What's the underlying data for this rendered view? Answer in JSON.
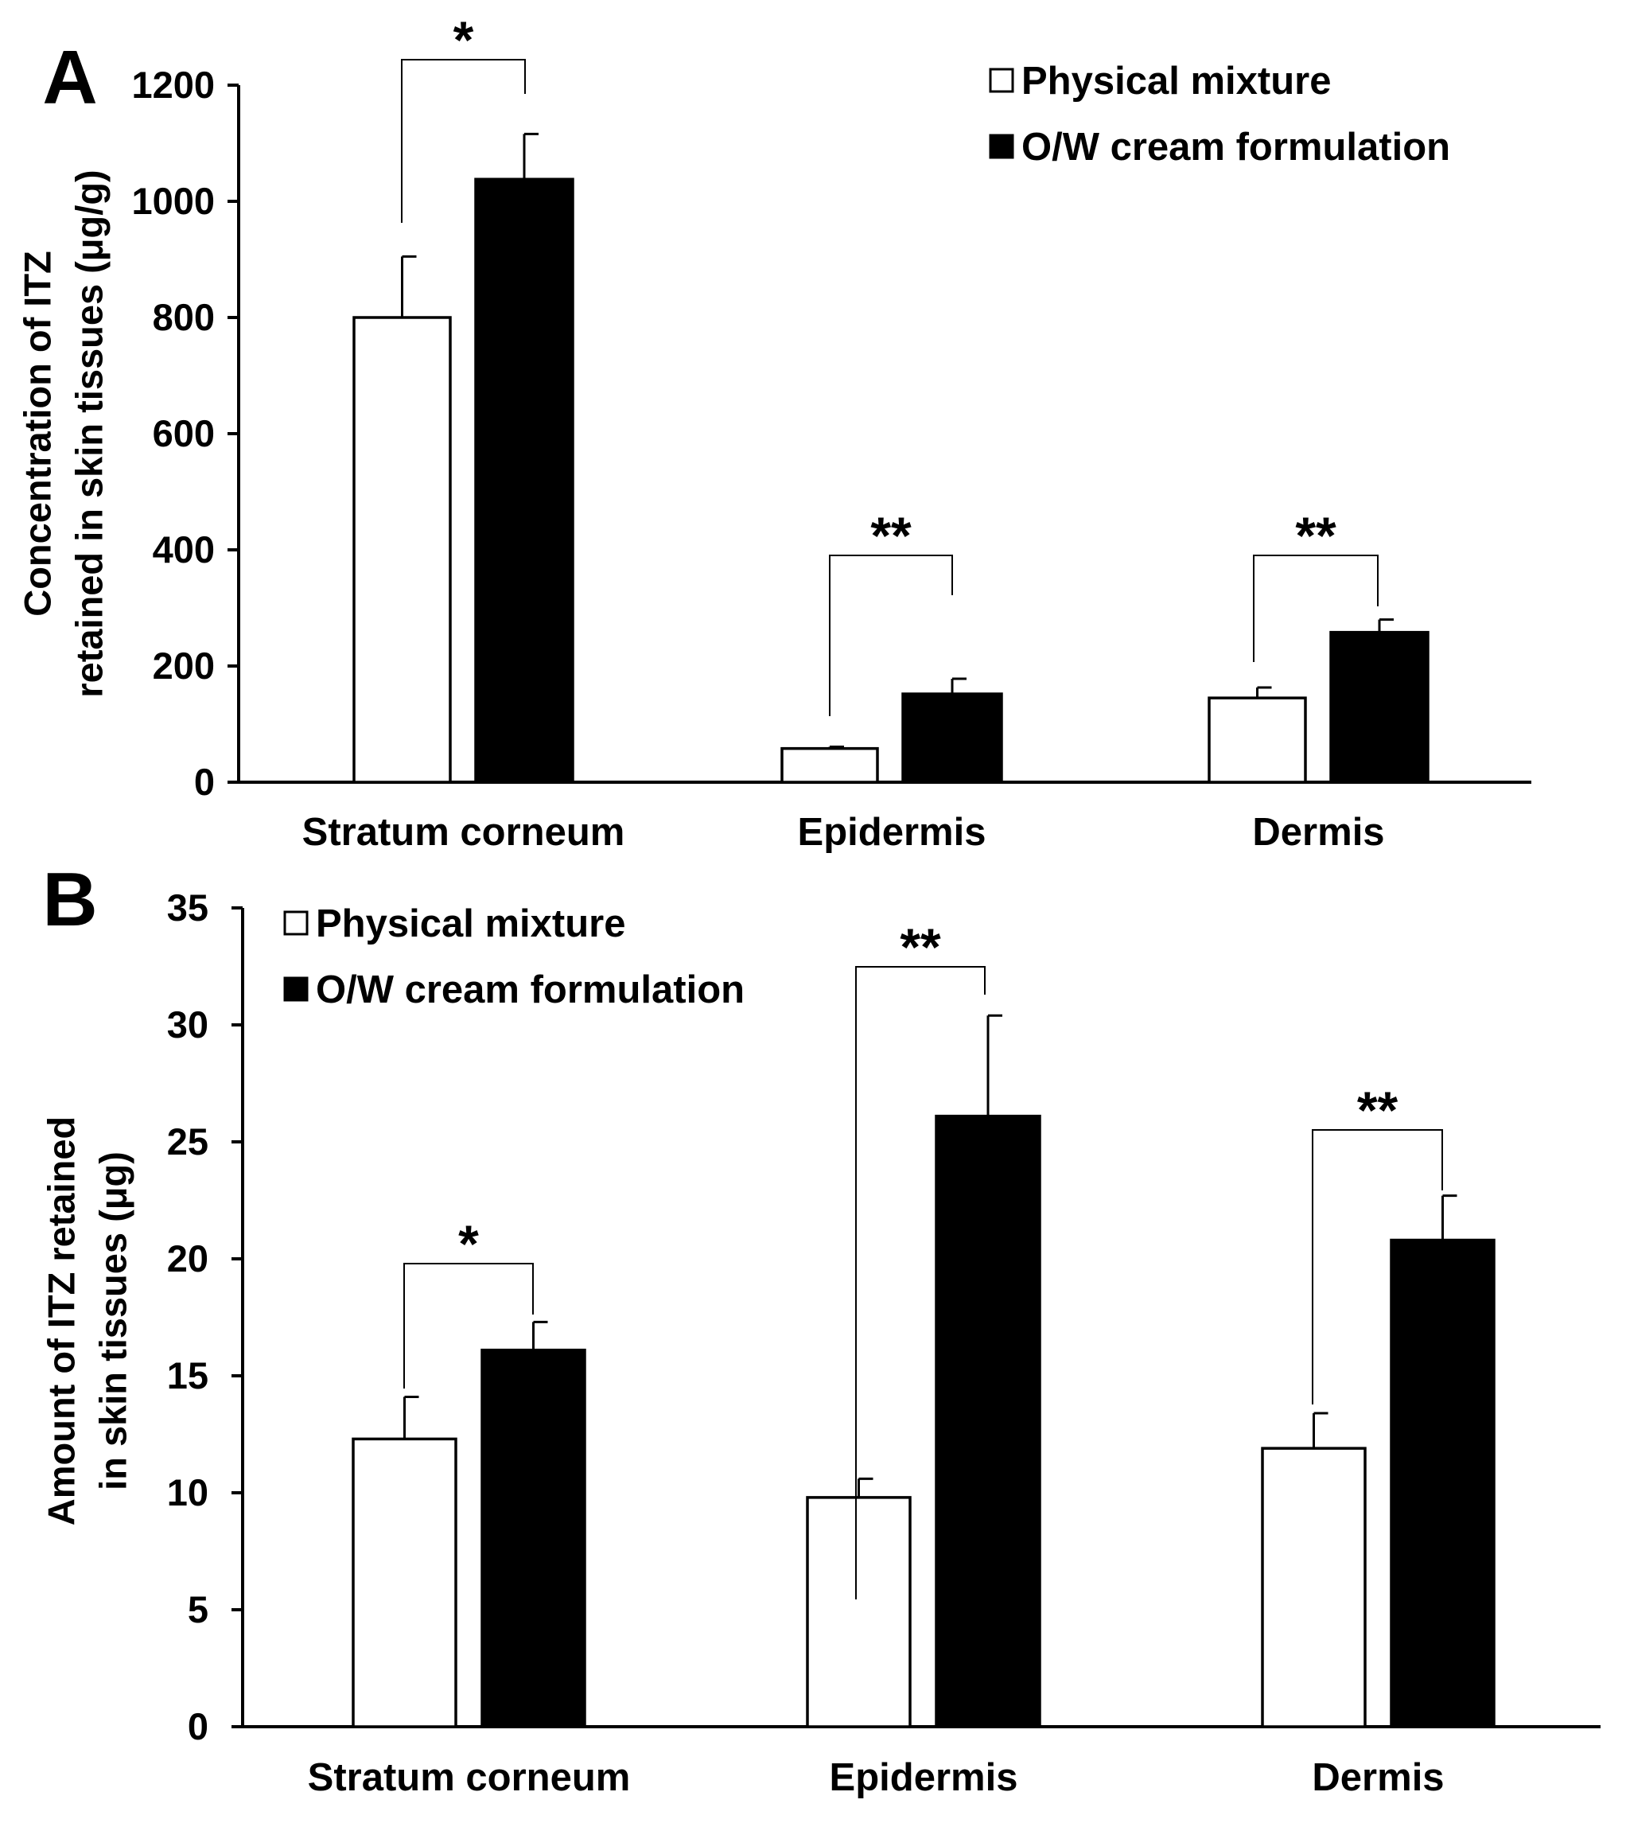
{
  "chart_data": [
    {
      "panel_label": "A",
      "type": "bar",
      "ylabel_lines": [
        "Concentration of ITZ",
        "retained in skin tissues (μg/g)"
      ],
      "ylim": [
        0,
        1200
      ],
      "yticks": [
        0,
        200,
        400,
        600,
        800,
        1000,
        1200
      ],
      "categories": [
        "Stratum corneum",
        "Epidermis",
        "Dermis"
      ],
      "series": [
        {
          "name": "Physical mixture",
          "fill": "#ffffff",
          "values": [
            800,
            58,
            145
          ],
          "errors": [
            105,
            3,
            18
          ]
        },
        {
          "name": "O/W cream formulation",
          "fill": "#000000",
          "values": [
            1038,
            152,
            258
          ],
          "errors": [
            78,
            26,
            22
          ]
        }
      ],
      "legend": {
        "placement": "top-right",
        "items": [
          "Physical mixture",
          "O/W cream formulation"
        ]
      },
      "significance": [
        "*",
        "**",
        "**"
      ]
    },
    {
      "panel_label": "B",
      "type": "bar",
      "ylabel_lines": [
        "Amount of ITZ retained",
        "in skin tissues (μg)"
      ],
      "ylim": [
        0,
        35
      ],
      "yticks": [
        0,
        5,
        10,
        15,
        20,
        25,
        30,
        35
      ],
      "categories": [
        "Stratum corneum",
        "Epidermis",
        "Dermis"
      ],
      "series": [
        {
          "name": "Physical mixture",
          "fill": "#ffffff",
          "values": [
            12.3,
            9.8,
            11.9
          ],
          "errors": [
            1.8,
            0.8,
            1.5
          ]
        },
        {
          "name": "O/W cream formulation",
          "fill": "#000000",
          "values": [
            16.1,
            26.1,
            20.8
          ],
          "errors": [
            1.2,
            4.3,
            1.9
          ]
        }
      ],
      "legend": {
        "placement": "top-left",
        "items": [
          "Physical mixture",
          "O/W cream formulation"
        ]
      },
      "significance": [
        "*",
        "**",
        "**"
      ]
    }
  ]
}
